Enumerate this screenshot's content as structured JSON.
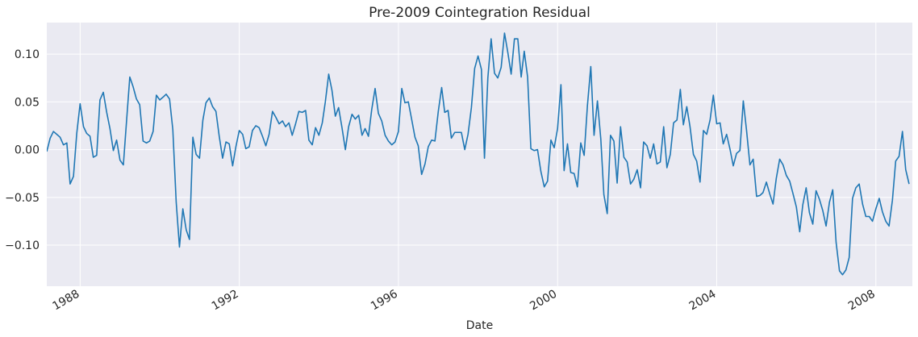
{
  "chart_data": {
    "type": "line",
    "title": "Pre-2009 Cointegration Residual",
    "xlabel": "Date",
    "ylabel": "",
    "xlim": [
      "1987-03-01",
      "2008-12-01"
    ],
    "ylim": [
      -0.143,
      0.133
    ],
    "x_ticks": [
      {
        "date": "1988-01-01",
        "label": "1988"
      },
      {
        "date": "1992-01-01",
        "label": "1992"
      },
      {
        "date": "1996-01-01",
        "label": "1996"
      },
      {
        "date": "2000-01-01",
        "label": "2000"
      },
      {
        "date": "2004-01-01",
        "label": "2004"
      },
      {
        "date": "2008-01-01",
        "label": "2008"
      }
    ],
    "y_ticks": [
      {
        "value": 0.1,
        "label": "0.10"
      },
      {
        "value": 0.05,
        "label": "0.05"
      },
      {
        "value": 0.0,
        "label": "0.00"
      },
      {
        "value": -0.05,
        "label": "−0.05"
      },
      {
        "value": -0.1,
        "label": "−0.10"
      }
    ],
    "grid": true,
    "colors": {
      "line": "#1f77b4",
      "plot_background": "#eaeaf2",
      "grid": "#ffffff"
    },
    "series": [
      {
        "points": [
          [
            "1987-03-01",
            -0.002
          ],
          [
            "1987-04-01",
            0.012
          ],
          [
            "1987-05-01",
            0.019
          ],
          [
            "1987-06-01",
            0.016
          ],
          [
            "1987-07-01",
            0.013
          ],
          [
            "1987-08-01",
            0.005
          ],
          [
            "1987-09-01",
            0.007
          ],
          [
            "1987-10-01",
            -0.036
          ],
          [
            "1987-11-01",
            -0.028
          ],
          [
            "1987-12-01",
            0.017
          ],
          [
            "1988-01-01",
            0.048
          ],
          [
            "1988-02-01",
            0.024
          ],
          [
            "1988-03-01",
            0.017
          ],
          [
            "1988-04-01",
            0.014
          ],
          [
            "1988-05-01",
            -0.008
          ],
          [
            "1988-06-01",
            -0.006
          ],
          [
            "1988-07-01",
            0.052
          ],
          [
            "1988-08-01",
            0.06
          ],
          [
            "1988-09-01",
            0.039
          ],
          [
            "1988-10-01",
            0.022
          ],
          [
            "1988-11-01",
            -0.001
          ],
          [
            "1988-12-01",
            0.01
          ],
          [
            "1989-01-01",
            -0.011
          ],
          [
            "1989-02-01",
            -0.016
          ],
          [
            "1989-03-01",
            0.028
          ],
          [
            "1989-04-01",
            0.076
          ],
          [
            "1989-05-01",
            0.066
          ],
          [
            "1989-06-01",
            0.053
          ],
          [
            "1989-07-01",
            0.047
          ],
          [
            "1989-08-01",
            0.009
          ],
          [
            "1989-09-01",
            0.007
          ],
          [
            "1989-10-01",
            0.009
          ],
          [
            "1989-11-01",
            0.019
          ],
          [
            "1989-12-01",
            0.057
          ],
          [
            "1990-01-01",
            0.052
          ],
          [
            "1990-02-01",
            0.055
          ],
          [
            "1990-03-01",
            0.058
          ],
          [
            "1990-04-01",
            0.053
          ],
          [
            "1990-05-01",
            0.021
          ],
          [
            "1990-06-01",
            -0.055
          ],
          [
            "1990-07-01",
            -0.102
          ],
          [
            "1990-08-01",
            -0.062
          ],
          [
            "1990-09-01",
            -0.084
          ],
          [
            "1990-10-01",
            -0.094
          ],
          [
            "1990-11-01",
            0.013
          ],
          [
            "1990-12-01",
            -0.005
          ],
          [
            "1991-01-01",
            -0.009
          ],
          [
            "1991-02-01",
            0.031
          ],
          [
            "1991-03-01",
            0.049
          ],
          [
            "1991-04-01",
            0.054
          ],
          [
            "1991-05-01",
            0.045
          ],
          [
            "1991-06-01",
            0.04
          ],
          [
            "1991-07-01",
            0.014
          ],
          [
            "1991-08-01",
            -0.009
          ],
          [
            "1991-09-01",
            0.008
          ],
          [
            "1991-10-01",
            0.006
          ],
          [
            "1991-11-01",
            -0.017
          ],
          [
            "1991-12-01",
            0.003
          ],
          [
            "1992-01-01",
            0.02
          ],
          [
            "1992-02-01",
            0.016
          ],
          [
            "1992-03-01",
            0.001
          ],
          [
            "1992-04-01",
            0.003
          ],
          [
            "1992-05-01",
            0.02
          ],
          [
            "1992-06-01",
            0.025
          ],
          [
            "1992-07-01",
            0.023
          ],
          [
            "1992-08-01",
            0.014
          ],
          [
            "1992-09-01",
            0.004
          ],
          [
            "1992-10-01",
            0.016
          ],
          [
            "1992-11-01",
            0.04
          ],
          [
            "1992-12-01",
            0.034
          ],
          [
            "1993-01-01",
            0.027
          ],
          [
            "1993-02-01",
            0.03
          ],
          [
            "1993-03-01",
            0.024
          ],
          [
            "1993-04-01",
            0.028
          ],
          [
            "1993-05-01",
            0.015
          ],
          [
            "1993-06-01",
            0.027
          ],
          [
            "1993-07-01",
            0.04
          ],
          [
            "1993-08-01",
            0.039
          ],
          [
            "1993-09-01",
            0.041
          ],
          [
            "1993-10-01",
            0.01
          ],
          [
            "1993-11-01",
            0.005
          ],
          [
            "1993-12-01",
            0.023
          ],
          [
            "1994-01-01",
            0.015
          ],
          [
            "1994-02-01",
            0.028
          ],
          [
            "1994-03-01",
            0.05
          ],
          [
            "1994-04-01",
            0.079
          ],
          [
            "1994-05-01",
            0.062
          ],
          [
            "1994-06-01",
            0.035
          ],
          [
            "1994-07-01",
            0.044
          ],
          [
            "1994-08-01",
            0.023
          ],
          [
            "1994-09-01",
            0.0
          ],
          [
            "1994-10-01",
            0.024
          ],
          [
            "1994-11-01",
            0.037
          ],
          [
            "1994-12-01",
            0.032
          ],
          [
            "1995-01-01",
            0.036
          ],
          [
            "1995-02-01",
            0.015
          ],
          [
            "1995-03-01",
            0.022
          ],
          [
            "1995-04-01",
            0.014
          ],
          [
            "1995-05-01",
            0.042
          ],
          [
            "1995-06-01",
            0.064
          ],
          [
            "1995-07-01",
            0.038
          ],
          [
            "1995-08-01",
            0.03
          ],
          [
            "1995-09-01",
            0.015
          ],
          [
            "1995-10-01",
            0.009
          ],
          [
            "1995-11-01",
            0.005
          ],
          [
            "1995-12-01",
            0.008
          ],
          [
            "1996-01-01",
            0.019
          ],
          [
            "1996-02-01",
            0.064
          ],
          [
            "1996-03-01",
            0.049
          ],
          [
            "1996-04-01",
            0.05
          ],
          [
            "1996-05-01",
            0.032
          ],
          [
            "1996-06-01",
            0.013
          ],
          [
            "1996-07-01",
            0.004
          ],
          [
            "1996-08-01",
            -0.026
          ],
          [
            "1996-09-01",
            -0.015
          ],
          [
            "1996-10-01",
            0.003
          ],
          [
            "1996-11-01",
            0.01
          ],
          [
            "1996-12-01",
            0.009
          ],
          [
            "1997-01-01",
            0.04
          ],
          [
            "1997-02-01",
            0.065
          ],
          [
            "1997-03-01",
            0.039
          ],
          [
            "1997-04-01",
            0.041
          ],
          [
            "1997-05-01",
            0.012
          ],
          [
            "1997-06-01",
            0.018
          ],
          [
            "1997-07-01",
            0.018
          ],
          [
            "1997-08-01",
            0.018
          ],
          [
            "1997-09-01",
            0.0
          ],
          [
            "1997-10-01",
            0.016
          ],
          [
            "1997-11-01",
            0.044
          ],
          [
            "1997-12-01",
            0.085
          ],
          [
            "1998-01-01",
            0.098
          ],
          [
            "1998-02-01",
            0.084
          ],
          [
            "1998-03-01",
            -0.009
          ],
          [
            "1998-04-01",
            0.075
          ],
          [
            "1998-05-01",
            0.116
          ],
          [
            "1998-06-01",
            0.08
          ],
          [
            "1998-07-01",
            0.075
          ],
          [
            "1998-08-01",
            0.086
          ],
          [
            "1998-09-01",
            0.122
          ],
          [
            "1998-10-01",
            0.102
          ],
          [
            "1998-11-01",
            0.079
          ],
          [
            "1998-12-01",
            0.116
          ],
          [
            "1999-01-01",
            0.116
          ],
          [
            "1999-02-01",
            0.076
          ],
          [
            "1999-03-01",
            0.103
          ],
          [
            "1999-04-01",
            0.076
          ],
          [
            "1999-05-01",
            0.001
          ],
          [
            "1999-06-01",
            -0.001
          ],
          [
            "1999-07-01",
            0.0
          ],
          [
            "1999-08-01",
            -0.023
          ],
          [
            "1999-09-01",
            -0.039
          ],
          [
            "1999-10-01",
            -0.033
          ],
          [
            "1999-11-01",
            0.01
          ],
          [
            "1999-12-01",
            0.002
          ],
          [
            "2000-01-01",
            0.022
          ],
          [
            "2000-02-01",
            0.068
          ],
          [
            "2000-03-01",
            -0.022
          ],
          [
            "2000-04-01",
            0.006
          ],
          [
            "2000-05-01",
            -0.024
          ],
          [
            "2000-06-01",
            -0.025
          ],
          [
            "2000-07-01",
            -0.039
          ],
          [
            "2000-08-01",
            0.007
          ],
          [
            "2000-09-01",
            -0.006
          ],
          [
            "2000-10-01",
            0.046
          ],
          [
            "2000-11-01",
            0.087
          ],
          [
            "2000-12-01",
            0.015
          ],
          [
            "2001-01-01",
            0.051
          ],
          [
            "2001-02-01",
            0.011
          ],
          [
            "2001-03-01",
            -0.047
          ],
          [
            "2001-04-01",
            -0.067
          ],
          [
            "2001-05-01",
            0.015
          ],
          [
            "2001-06-01",
            0.009
          ],
          [
            "2001-07-01",
            -0.035
          ],
          [
            "2001-08-01",
            0.024
          ],
          [
            "2001-09-01",
            -0.008
          ],
          [
            "2001-10-01",
            -0.013
          ],
          [
            "2001-11-01",
            -0.036
          ],
          [
            "2001-12-01",
            -0.031
          ],
          [
            "2002-01-01",
            -0.021
          ],
          [
            "2002-02-01",
            -0.04
          ],
          [
            "2002-03-01",
            0.008
          ],
          [
            "2002-04-01",
            0.004
          ],
          [
            "2002-05-01",
            -0.009
          ],
          [
            "2002-06-01",
            0.006
          ],
          [
            "2002-07-01",
            -0.015
          ],
          [
            "2002-08-01",
            -0.013
          ],
          [
            "2002-09-01",
            0.024
          ],
          [
            "2002-10-01",
            -0.019
          ],
          [
            "2002-11-01",
            -0.005
          ],
          [
            "2002-12-01",
            0.028
          ],
          [
            "2003-01-01",
            0.031
          ],
          [
            "2003-02-01",
            0.063
          ],
          [
            "2003-03-01",
            0.026
          ],
          [
            "2003-04-01",
            0.045
          ],
          [
            "2003-05-01",
            0.024
          ],
          [
            "2003-06-01",
            -0.005
          ],
          [
            "2003-07-01",
            -0.012
          ],
          [
            "2003-08-01",
            -0.034
          ],
          [
            "2003-09-01",
            0.02
          ],
          [
            "2003-10-01",
            0.016
          ],
          [
            "2003-11-01",
            0.031
          ],
          [
            "2003-12-01",
            0.057
          ],
          [
            "2004-01-01",
            0.027
          ],
          [
            "2004-02-01",
            0.028
          ],
          [
            "2004-03-01",
            0.006
          ],
          [
            "2004-04-01",
            0.016
          ],
          [
            "2004-05-01",
            0.001
          ],
          [
            "2004-06-01",
            -0.017
          ],
          [
            "2004-07-01",
            -0.004
          ],
          [
            "2004-08-01",
            -0.001
          ],
          [
            "2004-09-01",
            0.051
          ],
          [
            "2004-10-01",
            0.02
          ],
          [
            "2004-11-01",
            -0.016
          ],
          [
            "2004-12-01",
            -0.01
          ],
          [
            "2005-01-01",
            -0.049
          ],
          [
            "2005-02-01",
            -0.048
          ],
          [
            "2005-03-01",
            -0.045
          ],
          [
            "2005-04-01",
            -0.034
          ],
          [
            "2005-05-01",
            -0.046
          ],
          [
            "2005-06-01",
            -0.057
          ],
          [
            "2005-07-01",
            -0.03
          ],
          [
            "2005-08-01",
            -0.01
          ],
          [
            "2005-09-01",
            -0.016
          ],
          [
            "2005-10-01",
            -0.027
          ],
          [
            "2005-11-01",
            -0.033
          ],
          [
            "2005-12-01",
            -0.046
          ],
          [
            "2006-01-01",
            -0.06
          ],
          [
            "2006-02-01",
            -0.086
          ],
          [
            "2006-03-01",
            -0.058
          ],
          [
            "2006-04-01",
            -0.04
          ],
          [
            "2006-05-01",
            -0.066
          ],
          [
            "2006-06-01",
            -0.078
          ],
          [
            "2006-07-01",
            -0.043
          ],
          [
            "2006-08-01",
            -0.052
          ],
          [
            "2006-09-01",
            -0.064
          ],
          [
            "2006-10-01",
            -0.08
          ],
          [
            "2006-11-01",
            -0.055
          ],
          [
            "2006-12-01",
            -0.042
          ],
          [
            "2007-01-01",
            -0.097
          ],
          [
            "2007-02-01",
            -0.127
          ],
          [
            "2007-03-01",
            -0.131
          ],
          [
            "2007-04-01",
            -0.126
          ],
          [
            "2007-05-01",
            -0.113
          ],
          [
            "2007-06-01",
            -0.051
          ],
          [
            "2007-07-01",
            -0.04
          ],
          [
            "2007-08-01",
            -0.036
          ],
          [
            "2007-09-01",
            -0.057
          ],
          [
            "2007-10-01",
            -0.07
          ],
          [
            "2007-11-01",
            -0.07
          ],
          [
            "2007-12-01",
            -0.075
          ],
          [
            "2008-01-01",
            -0.062
          ],
          [
            "2008-02-01",
            -0.051
          ],
          [
            "2008-03-01",
            -0.065
          ],
          [
            "2008-04-01",
            -0.075
          ],
          [
            "2008-05-01",
            -0.08
          ],
          [
            "2008-06-01",
            -0.053
          ],
          [
            "2008-07-01",
            -0.012
          ],
          [
            "2008-08-01",
            -0.007
          ],
          [
            "2008-09-01",
            0.019
          ],
          [
            "2008-10-01",
            -0.021
          ],
          [
            "2008-11-01",
            -0.036
          ]
        ]
      }
    ]
  }
}
